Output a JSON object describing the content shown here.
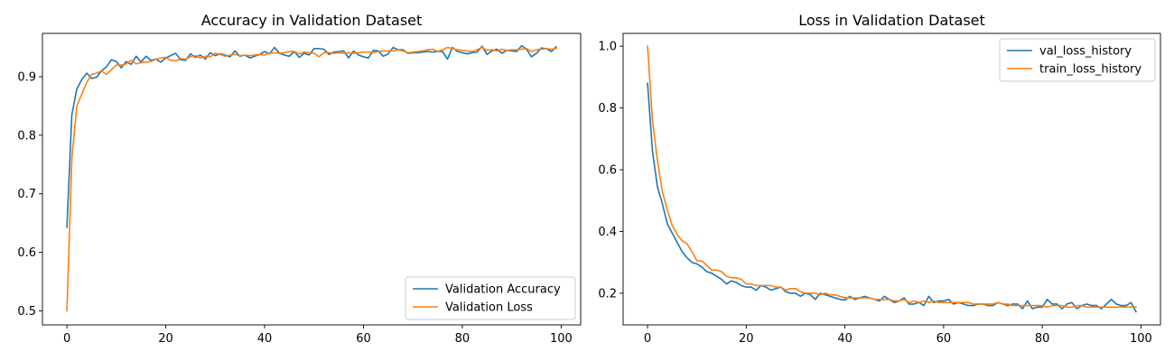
{
  "chart_data": [
    {
      "type": "line",
      "title": "Accuracy in Validation Dataset",
      "xlabel": "",
      "ylabel": "",
      "xlim": [
        -4.95,
        103.95
      ],
      "ylim": [
        0.476,
        0.974
      ],
      "xticks": [
        0,
        20,
        40,
        60,
        80,
        100
      ],
      "yticks": [
        0.5,
        0.6,
        0.7,
        0.8,
        0.9
      ],
      "ytick_labels": [
        "0.5",
        "0.6",
        "0.7",
        "0.8",
        "0.9"
      ],
      "legend_position": "lower-right",
      "grid": false,
      "series": [
        {
          "name": "Validation Accuracy",
          "color": "#1f77b4",
          "x": [
            0,
            1,
            2,
            3,
            4,
            5,
            6,
            7,
            8,
            9,
            10,
            11,
            12,
            13,
            14,
            15,
            16,
            17,
            18,
            19,
            20,
            21,
            22,
            23,
            24,
            25,
            26,
            27,
            28,
            29,
            30,
            31,
            32,
            33,
            34,
            35,
            36,
            37,
            38,
            39,
            40,
            41,
            42,
            43,
            44,
            45,
            46,
            47,
            48,
            49,
            50,
            51,
            52,
            53,
            54,
            55,
            56,
            57,
            58,
            59,
            60,
            61,
            62,
            63,
            64,
            65,
            66,
            67,
            68,
            69,
            70,
            71,
            72,
            73,
            74,
            75,
            76,
            77,
            78,
            79,
            80,
            81,
            82,
            83,
            84,
            85,
            86,
            87,
            88,
            89,
            90,
            91,
            92,
            93,
            94,
            95,
            96,
            97,
            98,
            99
          ],
          "y": [
            0.643,
            0.835,
            0.879,
            0.895,
            0.906,
            0.897,
            0.899,
            0.91,
            0.917,
            0.929,
            0.926,
            0.915,
            0.926,
            0.921,
            0.935,
            0.925,
            0.935,
            0.928,
            0.93,
            0.925,
            0.932,
            0.936,
            0.94,
            0.929,
            0.928,
            0.939,
            0.933,
            0.937,
            0.93,
            0.941,
            0.936,
            0.939,
            0.937,
            0.934,
            0.944,
            0.935,
            0.937,
            0.932,
            0.935,
            0.938,
            0.943,
            0.939,
            0.95,
            0.94,
            0.937,
            0.935,
            0.943,
            0.933,
            0.94,
            0.937,
            0.948,
            0.948,
            0.947,
            0.938,
            0.942,
            0.943,
            0.944,
            0.932,
            0.944,
            0.937,
            0.934,
            0.932,
            0.945,
            0.944,
            0.935,
            0.939,
            0.95,
            0.946,
            0.946,
            0.94,
            0.941,
            0.941,
            0.942,
            0.943,
            0.942,
            0.943,
            0.943,
            0.93,
            0.95,
            0.943,
            0.941,
            0.939,
            0.941,
            0.942,
            0.952,
            0.938,
            0.944,
            0.947,
            0.94,
            0.945,
            0.944,
            0.943,
            0.953,
            0.947,
            0.934,
            0.94,
            0.949,
            0.948,
            0.943,
            0.951
          ]
        },
        {
          "name": "Validation Loss",
          "color": "#ff7f0e",
          "x": [
            0,
            1,
            2,
            3,
            4,
            5,
            6,
            7,
            8,
            9,
            10,
            11,
            12,
            13,
            14,
            15,
            16,
            17,
            18,
            19,
            20,
            21,
            22,
            23,
            24,
            25,
            26,
            27,
            28,
            29,
            30,
            31,
            32,
            33,
            34,
            35,
            36,
            37,
            38,
            39,
            40,
            41,
            42,
            43,
            44,
            45,
            46,
            47,
            48,
            49,
            50,
            51,
            52,
            53,
            54,
            55,
            56,
            57,
            58,
            59,
            60,
            61,
            62,
            63,
            64,
            65,
            66,
            67,
            68,
            69,
            70,
            71,
            72,
            73,
            74,
            75,
            76,
            77,
            78,
            79,
            80,
            81,
            82,
            83,
            84,
            85,
            86,
            87,
            88,
            89,
            90,
            91,
            92,
            93,
            94,
            95,
            96,
            97,
            98,
            99
          ],
          "y": [
            0.5,
            0.76,
            0.85,
            0.87,
            0.89,
            0.904,
            0.906,
            0.91,
            0.904,
            0.912,
            0.92,
            0.92,
            0.922,
            0.928,
            0.922,
            0.924,
            0.925,
            0.926,
            0.93,
            0.932,
            0.933,
            0.928,
            0.927,
            0.931,
            0.93,
            0.934,
            0.936,
            0.932,
            0.935,
            0.934,
            0.94,
            0.938,
            0.935,
            0.937,
            0.938,
            0.936,
            0.937,
            0.936,
            0.937,
            0.938,
            0.937,
            0.94,
            0.941,
            0.94,
            0.941,
            0.943,
            0.943,
            0.939,
            0.942,
            0.941,
            0.94,
            0.934,
            0.941,
            0.941,
            0.94,
            0.941,
            0.94,
            0.941,
            0.94,
            0.941,
            0.942,
            0.942,
            0.941,
            0.943,
            0.944,
            0.944,
            0.944,
            0.946,
            0.944,
            0.941,
            0.942,
            0.943,
            0.944,
            0.946,
            0.947,
            0.943,
            0.946,
            0.95,
            0.948,
            0.946,
            0.945,
            0.944,
            0.943,
            0.946,
            0.95,
            0.945,
            0.946,
            0.944,
            0.947,
            0.945,
            0.946,
            0.946,
            0.947,
            0.948,
            0.943,
            0.946,
            0.947,
            0.948,
            0.947,
            0.948
          ]
        }
      ]
    },
    {
      "type": "line",
      "title": "Loss in Validation Dataset",
      "xlabel": "",
      "ylabel": "",
      "xlim": [
        -4.95,
        103.95
      ],
      "ylim": [
        0.0975,
        1.0415
      ],
      "xticks": [
        0,
        20,
        40,
        60,
        80,
        100
      ],
      "yticks": [
        0.2,
        0.4,
        0.6,
        0.8,
        1.0
      ],
      "ytick_labels": [
        "0.2",
        "0.4",
        "0.6",
        "0.8",
        "1.0"
      ],
      "legend_position": "upper-right",
      "grid": false,
      "series": [
        {
          "name": "val_loss_history",
          "color": "#1f77b4",
          "x": [
            0,
            1,
            2,
            3,
            4,
            5,
            6,
            7,
            8,
            9,
            10,
            11,
            12,
            13,
            14,
            15,
            16,
            17,
            18,
            19,
            20,
            21,
            22,
            23,
            24,
            25,
            26,
            27,
            28,
            29,
            30,
            31,
            32,
            33,
            34,
            35,
            36,
            37,
            38,
            39,
            40,
            41,
            42,
            43,
            44,
            45,
            46,
            47,
            48,
            49,
            50,
            51,
            52,
            53,
            54,
            55,
            56,
            57,
            58,
            59,
            60,
            61,
            62,
            63,
            64,
            65,
            66,
            67,
            68,
            69,
            70,
            71,
            72,
            73,
            74,
            75,
            76,
            77,
            78,
            79,
            80,
            81,
            82,
            83,
            84,
            85,
            86,
            87,
            88,
            89,
            90,
            91,
            92,
            93,
            94,
            95,
            96,
            97,
            98,
            99
          ],
          "y": [
            0.88,
            0.66,
            0.545,
            0.49,
            0.425,
            0.395,
            0.365,
            0.335,
            0.315,
            0.3,
            0.295,
            0.285,
            0.27,
            0.265,
            0.255,
            0.245,
            0.23,
            0.24,
            0.235,
            0.225,
            0.22,
            0.22,
            0.21,
            0.225,
            0.22,
            0.21,
            0.215,
            0.22,
            0.205,
            0.2,
            0.2,
            0.19,
            0.2,
            0.195,
            0.18,
            0.2,
            0.195,
            0.19,
            0.185,
            0.18,
            0.178,
            0.19,
            0.18,
            0.185,
            0.19,
            0.185,
            0.18,
            0.175,
            0.19,
            0.18,
            0.17,
            0.175,
            0.185,
            0.165,
            0.165,
            0.17,
            0.16,
            0.19,
            0.17,
            0.175,
            0.175,
            0.18,
            0.165,
            0.17,
            0.165,
            0.16,
            0.16,
            0.165,
            0.165,
            0.16,
            0.16,
            0.17,
            0.165,
            0.16,
            0.165,
            0.165,
            0.15,
            0.175,
            0.15,
            0.155,
            0.155,
            0.18,
            0.165,
            0.165,
            0.15,
            0.165,
            0.17,
            0.15,
            0.16,
            0.165,
            0.16,
            0.16,
            0.15,
            0.165,
            0.18,
            0.165,
            0.16,
            0.16,
            0.17,
            0.14
          ]
        },
        {
          "name": "train_loss_history",
          "color": "#ff7f0e",
          "x": [
            0,
            1,
            2,
            3,
            4,
            5,
            6,
            7,
            8,
            9,
            10,
            11,
            12,
            13,
            14,
            15,
            16,
            17,
            18,
            19,
            20,
            21,
            22,
            23,
            24,
            25,
            26,
            27,
            28,
            29,
            30,
            31,
            32,
            33,
            34,
            35,
            36,
            37,
            38,
            39,
            40,
            41,
            42,
            43,
            44,
            45,
            46,
            47,
            48,
            49,
            50,
            51,
            52,
            53,
            54,
            55,
            56,
            57,
            58,
            59,
            60,
            61,
            62,
            63,
            64,
            65,
            66,
            67,
            68,
            69,
            70,
            71,
            72,
            73,
            74,
            75,
            76,
            77,
            78,
            79,
            80,
            81,
            82,
            83,
            84,
            85,
            86,
            87,
            88,
            89,
            90,
            91,
            92,
            93,
            94,
            95,
            96,
            97,
            98,
            99
          ],
          "y": [
            1.0,
            0.76,
            0.63,
            0.53,
            0.47,
            0.42,
            0.39,
            0.37,
            0.36,
            0.335,
            0.305,
            0.305,
            0.29,
            0.275,
            0.275,
            0.27,
            0.255,
            0.25,
            0.25,
            0.245,
            0.23,
            0.23,
            0.225,
            0.225,
            0.225,
            0.225,
            0.22,
            0.22,
            0.21,
            0.215,
            0.215,
            0.205,
            0.2,
            0.2,
            0.2,
            0.195,
            0.2,
            0.195,
            0.195,
            0.19,
            0.185,
            0.185,
            0.185,
            0.185,
            0.185,
            0.185,
            0.18,
            0.18,
            0.18,
            0.18,
            0.175,
            0.175,
            0.18,
            0.17,
            0.175,
            0.17,
            0.175,
            0.17,
            0.175,
            0.17,
            0.17,
            0.17,
            0.17,
            0.17,
            0.17,
            0.17,
            0.165,
            0.165,
            0.165,
            0.165,
            0.165,
            0.17,
            0.165,
            0.165,
            0.16,
            0.16,
            0.16,
            0.16,
            0.16,
            0.16,
            0.16,
            0.155,
            0.16,
            0.16,
            0.16,
            0.155,
            0.155,
            0.16,
            0.16,
            0.155,
            0.155,
            0.155,
            0.155,
            0.155,
            0.155,
            0.155,
            0.155,
            0.155,
            0.155,
            0.155
          ]
        }
      ]
    }
  ]
}
